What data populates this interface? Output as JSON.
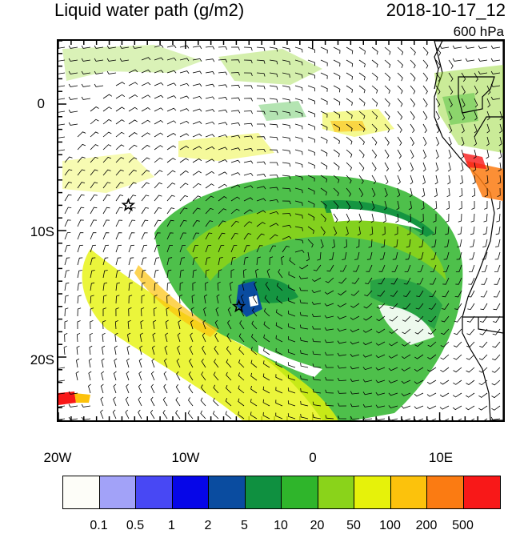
{
  "header": {
    "title": "Liquid water path (g/m2)",
    "datetime": "2018-10-17_12",
    "level": "600 hPa"
  },
  "map": {
    "lat_ticks": [
      "0",
      "10S",
      "20S"
    ],
    "lon_ticks": [
      "20W",
      "10W",
      "0",
      "10E"
    ],
    "lat_range": [
      5,
      -25
    ],
    "lon_range": [
      -20,
      15
    ],
    "markers": [
      {
        "type": "star",
        "lon": -14.5,
        "lat": -8.0
      },
      {
        "type": "star",
        "lon": -5.8,
        "lat": -16.0
      }
    ],
    "wind_barbs": "shown",
    "coastlines": "shown"
  },
  "colorbar": {
    "colors": [
      "#fdfdf8",
      "#a2a2f8",
      "#4848f4",
      "#0606e8",
      "#0a4ca0",
      "#0f9040",
      "#2fb52b",
      "#8ad31a",
      "#e6f20a",
      "#fcc20c",
      "#fb7b12",
      "#f81818"
    ],
    "labels": [
      "0.1",
      "0.5",
      "1",
      "2",
      "5",
      "10",
      "20",
      "50",
      "100",
      "200",
      "500"
    ]
  }
}
